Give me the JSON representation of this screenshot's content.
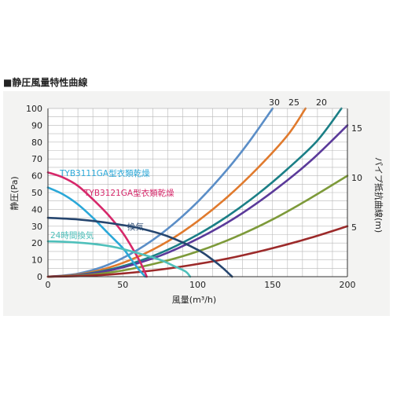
{
  "page_title": "■静圧風量特性曲線",
  "chart_data": {
    "type": "line",
    "xlabel": "風量(m³/h)",
    "ylabel": "静圧(Pa)",
    "y2label": "パイプ抵抗曲線(m)",
    "xlim": [
      0,
      200
    ],
    "ylim": [
      0,
      100
    ],
    "y2lim": [
      0,
      17
    ],
    "x_ticks": [
      "0",
      "50",
      "100",
      "150",
      "200"
    ],
    "y_ticks": [
      "0",
      "10",
      "20",
      "30",
      "40",
      "50",
      "60",
      "70",
      "80",
      "90",
      "100"
    ],
    "y2_ticks": [
      "5",
      "10",
      "15"
    ],
    "grid": true,
    "fan_curves": [
      {
        "name": "TYB3111GA型衣類乾燥",
        "color": "#2ba8d8",
        "points": [
          [
            0,
            53
          ],
          [
            10,
            49
          ],
          [
            20,
            43
          ],
          [
            30,
            35
          ],
          [
            40,
            26
          ],
          [
            50,
            17
          ],
          [
            55,
            11
          ],
          [
            60,
            5
          ],
          [
            65,
            0
          ]
        ]
      },
      {
        "name": "TYB3121GA型衣類乾燥",
        "color": "#d6286a",
        "points": [
          [
            0,
            62
          ],
          [
            10,
            59
          ],
          [
            20,
            54
          ],
          [
            30,
            46
          ],
          [
            40,
            37
          ],
          [
            50,
            26
          ],
          [
            57,
            16
          ],
          [
            62,
            8
          ],
          [
            66,
            0
          ]
        ]
      },
      {
        "name": "換気",
        "color": "#26466f",
        "points": [
          [
            0,
            35
          ],
          [
            20,
            34
          ],
          [
            40,
            32
          ],
          [
            60,
            29
          ],
          [
            80,
            24
          ],
          [
            100,
            16
          ],
          [
            110,
            10
          ],
          [
            117,
            5
          ],
          [
            123,
            0
          ]
        ]
      },
      {
        "name": "24時間換気",
        "color": "#4fc0bb",
        "points": [
          [
            0,
            21
          ],
          [
            15,
            20.5
          ],
          [
            30,
            19.5
          ],
          [
            45,
            17.5
          ],
          [
            60,
            14
          ],
          [
            75,
            10
          ],
          [
            85,
            6
          ],
          [
            92,
            3
          ],
          [
            95,
            0
          ]
        ]
      }
    ],
    "pipe_curves": [
      {
        "name": "30",
        "color": "#5b8ec7",
        "points": [
          [
            0,
            0
          ],
          [
            20,
            1.8
          ],
          [
            40,
            7
          ],
          [
            60,
            16
          ],
          [
            80,
            28.5
          ],
          [
            100,
            44.5
          ],
          [
            120,
            64
          ],
          [
            135,
            81
          ],
          [
            150,
            100
          ]
        ]
      },
      {
        "name": "25",
        "color": "#e07a2d",
        "points": [
          [
            0,
            0
          ],
          [
            20,
            1.3
          ],
          [
            40,
            5.2
          ],
          [
            60,
            11.8
          ],
          [
            80,
            21
          ],
          [
            100,
            33
          ],
          [
            120,
            47.5
          ],
          [
            140,
            64.5
          ],
          [
            160,
            84
          ],
          [
            172,
            100
          ]
        ]
      },
      {
        "name": "20",
        "color": "#1b7f86",
        "points": [
          [
            0,
            0
          ],
          [
            20,
            1
          ],
          [
            40,
            4
          ],
          [
            60,
            9
          ],
          [
            80,
            16
          ],
          [
            100,
            25
          ],
          [
            120,
            36
          ],
          [
            140,
            49
          ],
          [
            160,
            64
          ],
          [
            180,
            81
          ],
          [
            196,
            100
          ]
        ]
      },
      {
        "name": "15",
        "color": "#5b3a9a",
        "points": [
          [
            0,
            0
          ],
          [
            25,
            1.3
          ],
          [
            50,
            5.5
          ],
          [
            75,
            12.5
          ],
          [
            100,
            22.5
          ],
          [
            125,
            35
          ],
          [
            150,
            50.5
          ],
          [
            175,
            68.5
          ],
          [
            200,
            90
          ]
        ]
      },
      {
        "name": "10",
        "color": "#7d9a3a",
        "points": [
          [
            0,
            0
          ],
          [
            25,
            0.9
          ],
          [
            50,
            3.7
          ],
          [
            75,
            8.5
          ],
          [
            100,
            15
          ],
          [
            125,
            23.5
          ],
          [
            150,
            34
          ],
          [
            175,
            46.5
          ],
          [
            200,
            60
          ]
        ]
      },
      {
        "name": "5",
        "color": "#9c2a2a",
        "points": [
          [
            0,
            0
          ],
          [
            25,
            0.5
          ],
          [
            50,
            1.9
          ],
          [
            75,
            4.2
          ],
          [
            100,
            7.5
          ],
          [
            125,
            11.7
          ],
          [
            150,
            16.9
          ],
          [
            175,
            23
          ],
          [
            200,
            30
          ]
        ]
      }
    ]
  }
}
